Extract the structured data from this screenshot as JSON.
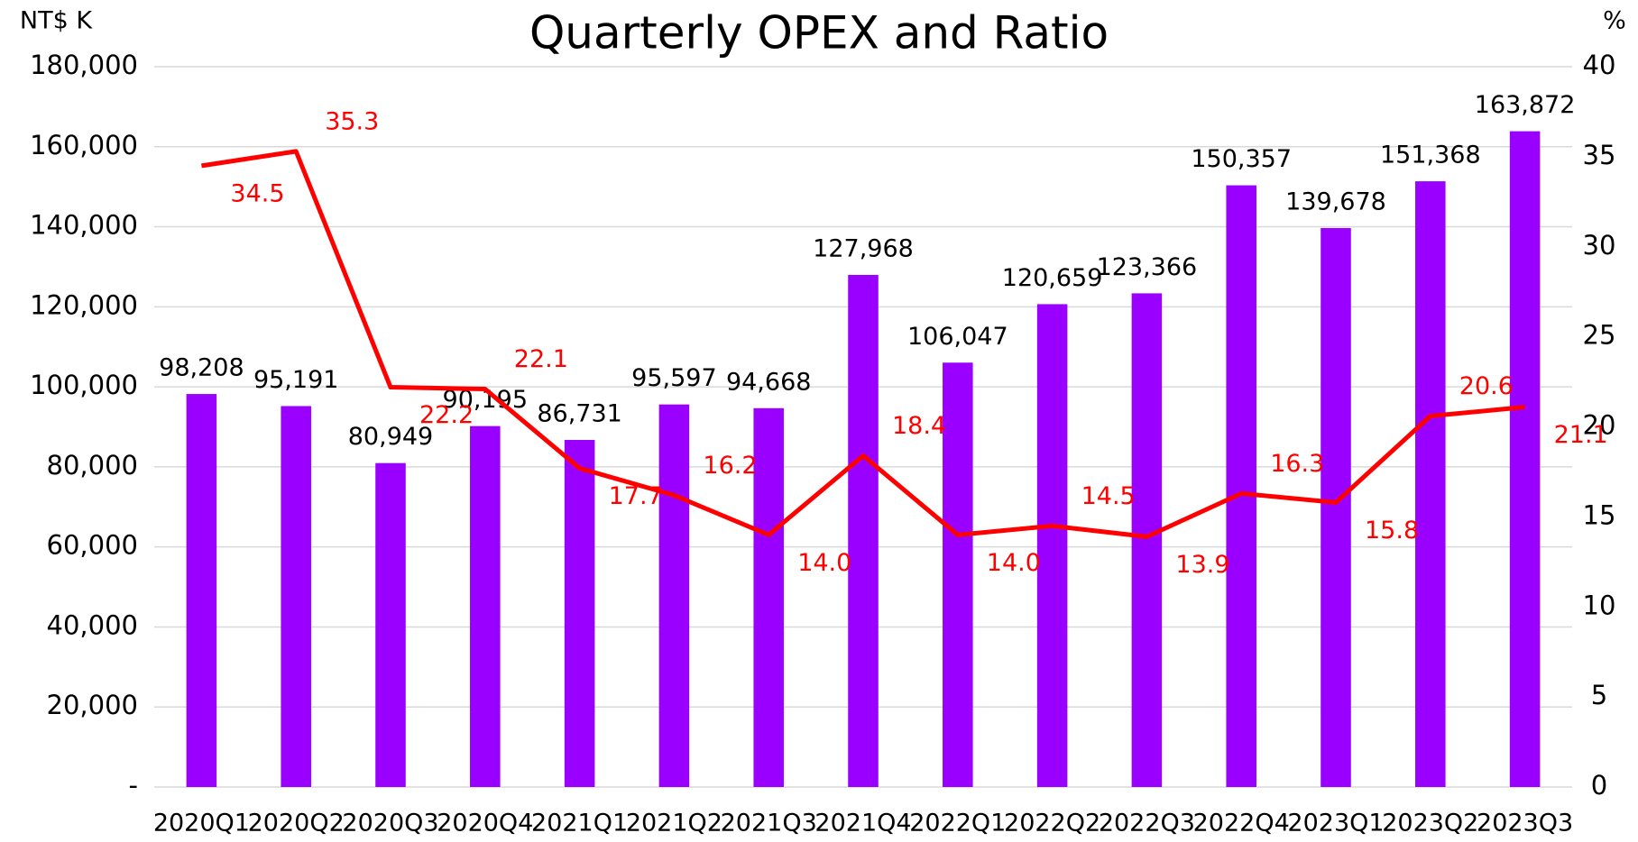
{
  "chart_data": {
    "type": "bar_line",
    "title": "Quarterly OPEX and Ratio",
    "y_label": "NT$ K",
    "y2_label": "%",
    "categories": [
      "2020Q1",
      "2020Q2",
      "2020Q3",
      "2020Q4",
      "2021Q1",
      "2021Q2",
      "2021Q3",
      "2021Q4",
      "2022Q1",
      "2022Q2",
      "2022Q3",
      "2022Q4",
      "2023Q1",
      "2023Q2",
      "2023Q3"
    ],
    "series": [
      {
        "type": "bar",
        "color": "#9900ff",
        "values": [
          98208,
          95191,
          80949,
          90195,
          86731,
          95597,
          94668,
          127968,
          106047,
          120659,
          123366,
          150357,
          139678,
          151368,
          163872
        ],
        "value_labels": [
          "98,208",
          "95,191",
          "80,949",
          "90,195",
          "86,731",
          "95,597",
          "94,668",
          "127,968",
          "106,047",
          "120,659",
          "123,366",
          "150,357",
          "139,678",
          "151,368",
          "163,872"
        ]
      },
      {
        "type": "line",
        "axis": "y2",
        "color": "#ff0000",
        "values": [
          34.5,
          35.3,
          22.2,
          22.1,
          17.7,
          16.2,
          14.0,
          18.4,
          14.0,
          14.5,
          13.9,
          16.3,
          15.8,
          20.6,
          21.1
        ],
        "value_labels": [
          "34.5",
          "35.3",
          "22.2",
          "22.1",
          "17.7",
          "16.2",
          "14.0",
          "18.4",
          "14.0",
          "14.5",
          "13.9",
          "16.3",
          "15.8",
          "20.6",
          "21.1"
        ]
      }
    ],
    "ylim": [
      0,
      180000
    ],
    "yticks": [
      {
        "value": 0,
        "label": "-"
      },
      {
        "value": 20000,
        "label": "20,000"
      },
      {
        "value": 40000,
        "label": "40,000"
      },
      {
        "value": 60000,
        "label": "60,000"
      },
      {
        "value": 80000,
        "label": "80,000"
      },
      {
        "value": 100000,
        "label": "100,000"
      },
      {
        "value": 120000,
        "label": "120,000"
      },
      {
        "value": 140000,
        "label": "140,000"
      },
      {
        "value": 160000,
        "label": "160,000"
      },
      {
        "value": 180000,
        "label": "180,000"
      }
    ],
    "y2lim": [
      0,
      40
    ],
    "y2ticks": [
      0,
      5,
      10,
      15,
      20,
      25,
      30,
      35,
      40
    ],
    "grid": true
  }
}
